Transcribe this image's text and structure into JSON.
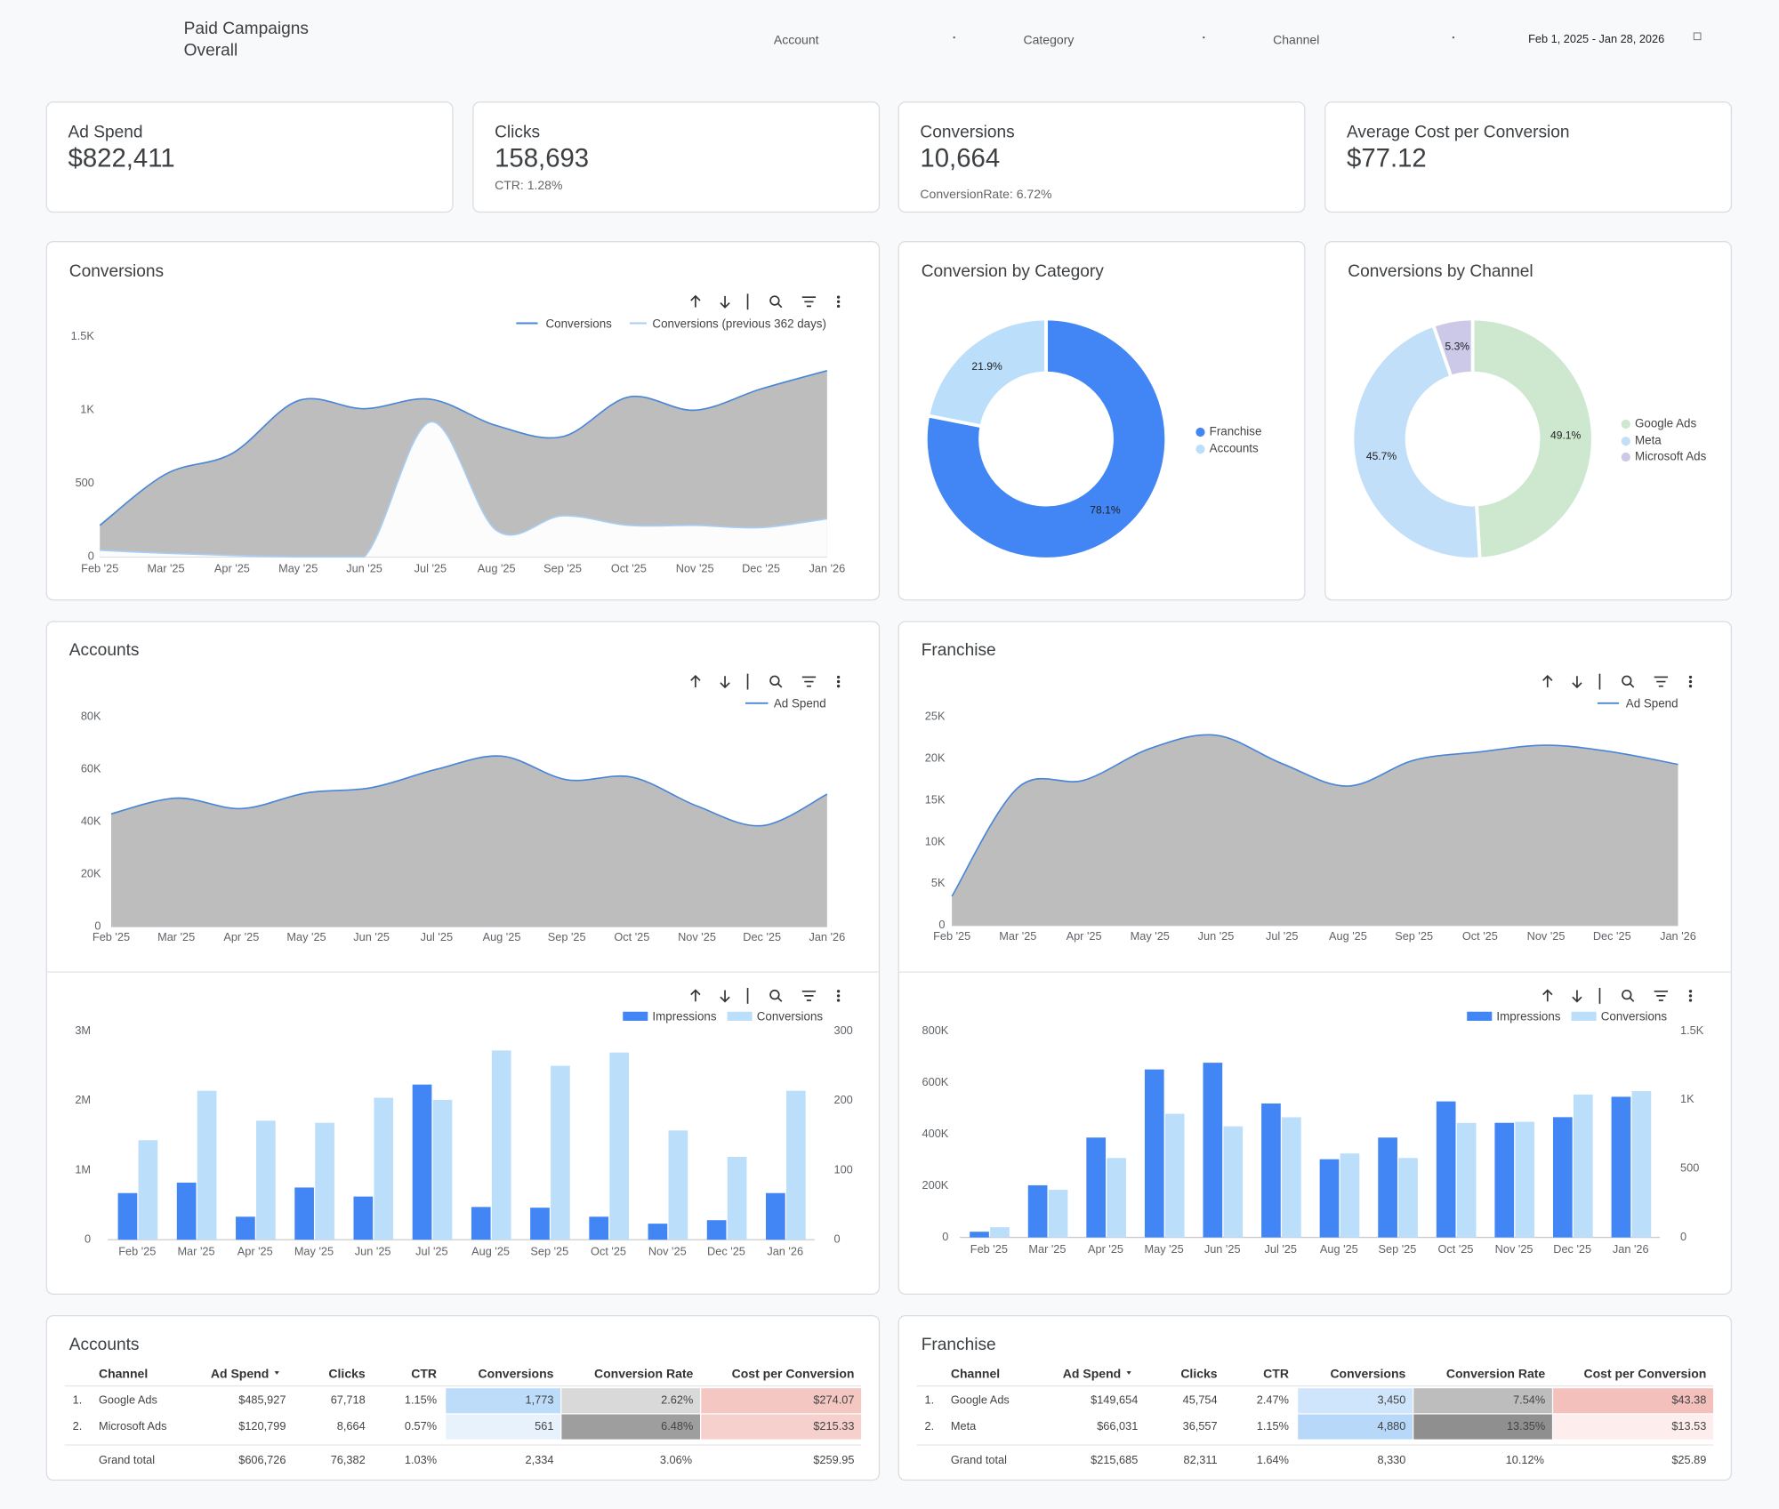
{
  "header": {
    "title": "Paid Campaigns",
    "subtitle": "Overall",
    "filters": [
      "Account",
      "Category",
      "Channel"
    ],
    "date_range": "Feb 1, 2025 - Jan 28, 2026"
  },
  "kpis": [
    {
      "label": "Ad Spend",
      "value": "$822,411"
    },
    {
      "label": "Clicks",
      "value": "158,693",
      "note": "CTR: 1.28%"
    },
    {
      "label": "Conversions",
      "value": "10,664",
      "note": "ConversionRate: 6.72%"
    },
    {
      "label": "Average Cost per Conversion",
      "value": "$77.12"
    }
  ],
  "chart_data": [
    {
      "type": "area",
      "title": "Conversions",
      "categories": [
        "Feb '25",
        "Mar '25",
        "Apr '25",
        "May '25",
        "Jun '25",
        "Jul '25",
        "Aug '25",
        "Sep '25",
        "Oct '25",
        "Nov '25",
        "Dec '25",
        "Jan '26"
      ],
      "series": [
        {
          "name": "Conversions",
          "color": "#4a86d8",
          "fill": "#bdbdbd",
          "values": [
            215,
            565,
            705,
            1065,
            1010,
            1075,
            895,
            820,
            1090,
            1000,
            1145,
            1270
          ]
        },
        {
          "name": "Conversions (previous 362 days)",
          "color": "#a8cdf5",
          "fill": "#ffffff",
          "values": [
            45,
            25,
            10,
            0,
            0,
            920,
            180,
            280,
            215,
            215,
            200,
            260
          ]
        }
      ],
      "ylim": [
        0,
        1500
      ],
      "yticks": [
        0,
        500,
        {
          "value": 1000,
          "label": "1K"
        },
        {
          "value": 1500,
          "label": "1.5K"
        }
      ],
      "grid": false
    },
    {
      "type": "pie",
      "donut": true,
      "title": "Conversion by Category",
      "categories": [
        "Franchise",
        "Accounts"
      ],
      "values": [
        78.1,
        21.9
      ],
      "value_labels": [
        "78.1%",
        "21.9%"
      ],
      "colors": [
        "#4285f4",
        "#bbdefb"
      ]
    },
    {
      "type": "pie",
      "donut": true,
      "title": "Conversions by Channel",
      "categories": [
        "Google Ads",
        "Meta",
        "Microsoft Ads"
      ],
      "values": [
        49.1,
        45.7,
        5.3
      ],
      "value_labels": [
        "49.1%",
        "45.7%",
        "5.3%"
      ],
      "colors": [
        "#cde8cf",
        "#c2dff9",
        "#cbc8e8"
      ]
    },
    {
      "type": "area",
      "title": "Accounts",
      "categories": [
        "Feb '25",
        "Mar '25",
        "Apr '25",
        "May '25",
        "Jun '25",
        "Jul '25",
        "Aug '25",
        "Sep '25",
        "Oct '25",
        "Nov '25",
        "Dec '25",
        "Jan '26"
      ],
      "series": [
        {
          "name": "Ad Spend",
          "color": "#4a86d8",
          "fill": "#bdbdbd",
          "values": [
            43000,
            49000,
            45000,
            51000,
            53000,
            60000,
            65000,
            56000,
            57000,
            46000,
            38500,
            50500
          ]
        }
      ],
      "ylim": [
        0,
        80000
      ],
      "yticks": [
        0,
        {
          "value": 20000,
          "label": "20K"
        },
        {
          "value": 40000,
          "label": "40K"
        },
        {
          "value": 60000,
          "label": "60K"
        },
        {
          "value": 80000,
          "label": "80K"
        }
      ],
      "grid": false
    },
    {
      "type": "area",
      "title": "Franchise",
      "categories": [
        "Feb '25",
        "Mar '25",
        "Apr '25",
        "May '25",
        "Jun '25",
        "Jul '25",
        "Aug '25",
        "Sep '25",
        "Oct '25",
        "Nov '25",
        "Dec '25",
        "Jan '26"
      ],
      "series": [
        {
          "name": "Ad Spend",
          "color": "#4a86d8",
          "fill": "#bdbdbd",
          "values": [
            3500,
            16500,
            17400,
            21200,
            22800,
            19400,
            16700,
            19800,
            20800,
            21600,
            20800,
            19300
          ]
        }
      ],
      "ylim": [
        0,
        25000
      ],
      "yticks": [
        0,
        {
          "value": 5000,
          "label": "5K"
        },
        {
          "value": 10000,
          "label": "10K"
        },
        {
          "value": 15000,
          "label": "15K"
        },
        {
          "value": 20000,
          "label": "20K"
        },
        {
          "value": 25000,
          "label": "25K"
        }
      ],
      "grid": false
    },
    {
      "type": "bar",
      "categories": [
        "Feb '25",
        "Mar '25",
        "Apr '25",
        "May '25",
        "Jun '25",
        "Jul '25",
        "Aug '25",
        "Sep '25",
        "Oct '25",
        "Nov '25",
        "Dec '25",
        "Jan '26"
      ],
      "series": [
        {
          "name": "Impressions",
          "color": "#4285f4",
          "values": [
            670000,
            820000,
            330000,
            750000,
            620000,
            2230000,
            470000,
            460000,
            330000,
            230000,
            280000,
            670000
          ]
        },
        {
          "name": "Conversions",
          "color": "#bbdefb",
          "axis": "y2",
          "values": [
            143,
            214,
            171,
            168,
            204,
            201,
            272,
            250,
            269,
            157,
            119,
            214
          ]
        }
      ],
      "ylim": [
        0,
        3000000
      ],
      "yticks": [
        0,
        {
          "value": 1000000,
          "label": "1M"
        },
        {
          "value": 2000000,
          "label": "2M"
        },
        {
          "value": 3000000,
          "label": "3M"
        }
      ],
      "y2lim": [
        0,
        300
      ],
      "y2ticks": [
        0,
        100,
        200,
        300
      ],
      "grid": false
    },
    {
      "type": "bar",
      "categories": [
        "Feb '25",
        "Mar '25",
        "Apr '25",
        "May '25",
        "Jun '25",
        "Jul '25",
        "Aug '25",
        "Sep '25",
        "Oct '25",
        "Nov '25",
        "Dec '25",
        "Jan '26"
      ],
      "series": [
        {
          "name": "Impressions",
          "color": "#4285f4",
          "values": [
            22000,
            202000,
            387000,
            651000,
            677000,
            519000,
            303000,
            387000,
            527000,
            444000,
            466000,
            545000
          ]
        },
        {
          "name": "Conversions",
          "color": "#bbdefb",
          "axis": "y2",
          "values": [
            74,
            346,
            577,
            898,
            807,
            873,
            610,
            577,
            832,
            840,
            1038,
            1063
          ]
        }
      ],
      "ylim": [
        0,
        800000
      ],
      "yticks": [
        0,
        {
          "value": 200000,
          "label": "200K"
        },
        {
          "value": 400000,
          "label": "400K"
        },
        {
          "value": 600000,
          "label": "600K"
        },
        {
          "value": 800000,
          "label": "800K"
        }
      ],
      "y2lim": [
        0,
        1500
      ],
      "y2ticks": [
        0,
        500,
        {
          "value": 1000,
          "label": "1K"
        },
        {
          "value": 1500,
          "label": "1.5K"
        }
      ],
      "grid": false
    }
  ],
  "tables": [
    {
      "title": "Accounts",
      "columns": [
        "Channel",
        "Ad Spend",
        "Clicks",
        "CTR",
        "Conversions",
        "Conversion Rate",
        "Cost per Conversion"
      ],
      "rows": [
        [
          "1.",
          "Google Ads",
          "$485,927",
          "67,718",
          "1.15%",
          "1,773",
          "2.62%",
          "$274.07"
        ],
        [
          "2.",
          "Microsoft Ads",
          "$120,799",
          "8,664",
          "0.57%",
          "561",
          "6.48%",
          "$215.33"
        ]
      ],
      "total": [
        "Grand total",
        "$606,726",
        "76,382",
        "1.03%",
        "2,334",
        "3.06%",
        "$259.95"
      ]
    },
    {
      "title": "Franchise",
      "columns": [
        "Channel",
        "Ad Spend",
        "Clicks",
        "CTR",
        "Conversions",
        "Conversion Rate",
        "Cost per Conversion"
      ],
      "rows": [
        [
          "1.",
          "Google Ads",
          "$149,654",
          "45,754",
          "2.47%",
          "3,450",
          "7.54%",
          "$43.38"
        ],
        [
          "2.",
          "Meta",
          "$66,031",
          "36,557",
          "1.15%",
          "4,880",
          "13.35%",
          "$13.53"
        ]
      ],
      "total": [
        "Grand total",
        "$215,685",
        "82,311",
        "1.64%",
        "8,330",
        "10.12%",
        "$25.89"
      ]
    }
  ]
}
